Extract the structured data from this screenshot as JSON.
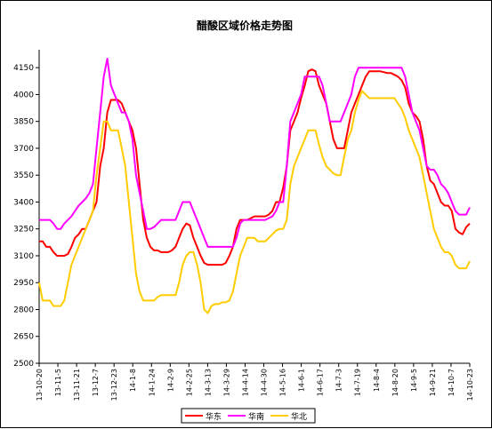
{
  "chart_data": {
    "type": "line",
    "title": "醋酸区域价格走势图",
    "xlabel": "",
    "ylabel": "",
    "ylim": [
      2500,
      4250
    ],
    "yticks": [
      2500,
      2650,
      2800,
      2950,
      3100,
      3250,
      3400,
      3550,
      3700,
      3850,
      4000,
      4150
    ],
    "grid": false,
    "legend_position": "bottom",
    "x_tick_labels": [
      "13-10-20",
      "13-11-5",
      "13-11-21",
      "13-12-7",
      "13-12-23",
      "14-1-8",
      "14-1-24",
      "14-2-9",
      "14-2-25",
      "14-3-13",
      "14-3-29",
      "14-4-14",
      "14-4-30",
      "14-5-16",
      "14-6-1",
      "14-6-17",
      "14-7-3",
      "14-7-19",
      "14-8-4",
      "14-8-20",
      "14-9-5",
      "14-9-21",
      "14-10-7",
      "14-10-23"
    ],
    "series": [
      {
        "name": "华东",
        "color": "#ff0000",
        "values": [
          3180,
          3180,
          3150,
          3150,
          3120,
          3100,
          3100,
          3100,
          3110,
          3150,
          3200,
          3220,
          3250,
          3250,
          3300,
          3350,
          3400,
          3600,
          3700,
          3900,
          3970,
          3970,
          3970,
          3950,
          3900,
          3850,
          3800,
          3700,
          3500,
          3300,
          3200,
          3150,
          3130,
          3130,
          3120,
          3120,
          3120,
          3130,
          3150,
          3200,
          3250,
          3280,
          3270,
          3200,
          3150,
          3100,
          3060,
          3050,
          3050,
          3050,
          3050,
          3050,
          3060,
          3100,
          3150,
          3250,
          3300,
          3300,
          3300,
          3310,
          3320,
          3320,
          3320,
          3320,
          3330,
          3350,
          3400,
          3400,
          3480,
          3600,
          3800,
          3850,
          3900,
          3980,
          4050,
          4130,
          4140,
          4130,
          4050,
          4000,
          3950,
          3850,
          3750,
          3700,
          3700,
          3700,
          3800,
          3900,
          3950,
          4000,
          4050,
          4100,
          4130,
          4130,
          4130,
          4130,
          4125,
          4120,
          4120,
          4110,
          4100,
          4080,
          4040,
          3950,
          3900,
          3880,
          3850,
          3750,
          3600,
          3520,
          3500,
          3450,
          3400,
          3380,
          3380,
          3350,
          3250,
          3230,
          3220,
          3260,
          3280
        ]
      },
      {
        "name": "华南",
        "color": "#ff00ff",
        "values": [
          3300,
          3300,
          3300,
          3300,
          3280,
          3250,
          3250,
          3280,
          3300,
          3320,
          3350,
          3380,
          3400,
          3420,
          3450,
          3500,
          3700,
          3900,
          4100,
          4200,
          4050,
          4000,
          3950,
          3900,
          3900,
          3850,
          3750,
          3550,
          3450,
          3350,
          3250,
          3250,
          3260,
          3280,
          3300,
          3300,
          3300,
          3300,
          3300,
          3350,
          3400,
          3400,
          3400,
          3350,
          3300,
          3250,
          3200,
          3150,
          3150,
          3150,
          3150,
          3150,
          3150,
          3150,
          3150,
          3200,
          3280,
          3300,
          3300,
          3300,
          3300,
          3300,
          3300,
          3300,
          3310,
          3320,
          3350,
          3400,
          3400,
          3600,
          3850,
          3900,
          3950,
          4000,
          4100,
          4100,
          4100,
          4100,
          4100,
          4050,
          3950,
          3850,
          3850,
          3850,
          3850,
          3900,
          3950,
          4000,
          4100,
          4150,
          4150,
          4150,
          4150,
          4150,
          4150,
          4150,
          4150,
          4150,
          4150,
          4150,
          4150,
          4150,
          4100,
          4000,
          3900,
          3850,
          3800,
          3700,
          3600,
          3580,
          3580,
          3550,
          3500,
          3480,
          3450,
          3400,
          3350,
          3330,
          3330,
          3330,
          3370
        ]
      },
      {
        "name": "华北",
        "color": "#ffcc00",
        "values": [
          2950,
          2850,
          2850,
          2850,
          2820,
          2820,
          2820,
          2850,
          2950,
          3050,
          3100,
          3150,
          3200,
          3250,
          3300,
          3350,
          3550,
          3700,
          3850,
          3850,
          3800,
          3800,
          3800,
          3700,
          3600,
          3400,
          3200,
          3000,
          2900,
          2850,
          2850,
          2850,
          2850,
          2870,
          2880,
          2880,
          2880,
          2880,
          2880,
          2950,
          3050,
          3100,
          3120,
          3120,
          3050,
          2950,
          2800,
          2780,
          2820,
          2830,
          2830,
          2840,
          2840,
          2850,
          2900,
          3000,
          3100,
          3150,
          3200,
          3200,
          3200,
          3180,
          3180,
          3180,
          3200,
          3220,
          3240,
          3250,
          3250,
          3300,
          3500,
          3600,
          3650,
          3700,
          3750,
          3800,
          3800,
          3800,
          3720,
          3650,
          3600,
          3580,
          3560,
          3550,
          3550,
          3650,
          3750,
          3800,
          3900,
          3970,
          4020,
          4000,
          3980,
          3980,
          3980,
          3980,
          3980,
          3980,
          3980,
          3980,
          3950,
          3920,
          3870,
          3800,
          3750,
          3700,
          3650,
          3550,
          3450,
          3350,
          3250,
          3200,
          3150,
          3120,
          3120,
          3100,
          3050,
          3030,
          3030,
          3030,
          3070
        ]
      }
    ]
  }
}
